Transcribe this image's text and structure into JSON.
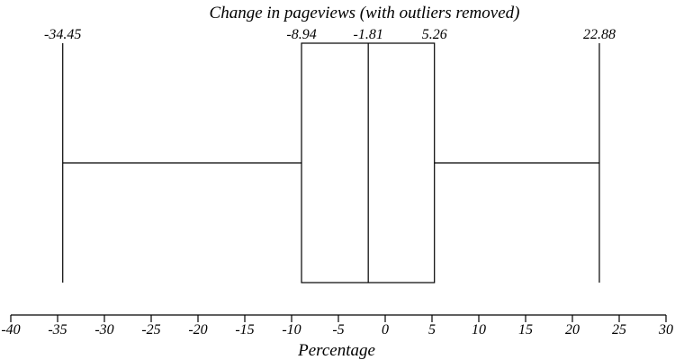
{
  "chart_data": {
    "type": "box",
    "title": "Change in pageviews (with outliers removed)",
    "xlabel": "Percentage",
    "xlim": [
      -40,
      30
    ],
    "xticks": [
      -40,
      -35,
      -30,
      -25,
      -20,
      -15,
      -10,
      -5,
      0,
      5,
      10,
      15,
      20,
      25,
      30
    ],
    "box": {
      "whisker_low": -34.45,
      "q1": -8.94,
      "median": -1.81,
      "q3": 5.26,
      "whisker_high": 22.88
    },
    "value_labels": {
      "whisker_low": "-34.45",
      "q1": "-8.94",
      "median": "-1.81",
      "q3": "5.26",
      "whisker_high": "22.88"
    }
  }
}
